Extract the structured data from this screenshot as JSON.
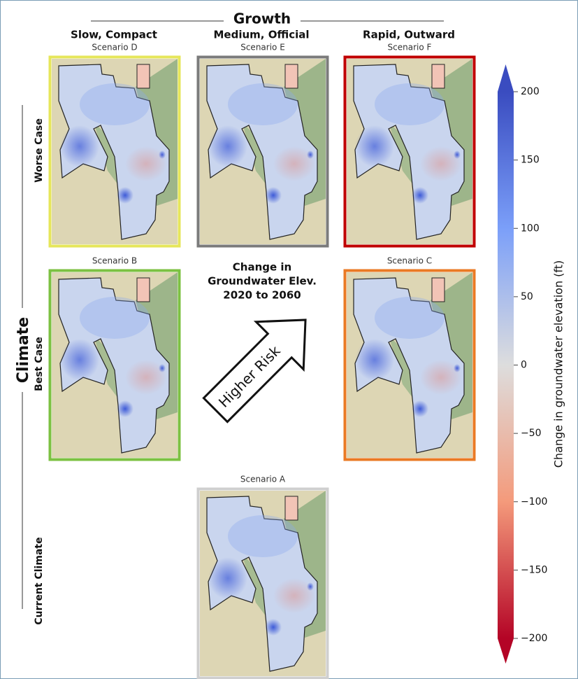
{
  "header": {
    "title": "Growth",
    "columns": [
      "Slow, Compact",
      "Medium, Official",
      "Rapid, Outward"
    ]
  },
  "side": {
    "title": "Climate",
    "rows": [
      "Worse Case",
      "Best Case",
      "Current Climate"
    ]
  },
  "panels": [
    {
      "label": "Scenario D"
    },
    {
      "label": "Scenario E"
    },
    {
      "label": "Scenario F"
    },
    {
      "label": "Scenario B"
    },
    {
      "label": "Scenario C"
    },
    {
      "label": "Scenario A"
    }
  ],
  "center_title": [
    "Change in",
    "Groundwater Elev.",
    "2020 to 2060"
  ],
  "arrow_label": "Higher Risk",
  "colorbar": {
    "label": "Change in groundwater elevation (ft)",
    "range": [
      -200,
      200
    ],
    "ticks": [
      200,
      150,
      100,
      50,
      0,
      {
        "value": -50,
        "label": "−50"
      },
      {
        "value": -100,
        "label": "−100"
      },
      {
        "value": -150,
        "label": "−150"
      },
      {
        "value": -200,
        "label": "−200"
      }
    ]
  }
}
